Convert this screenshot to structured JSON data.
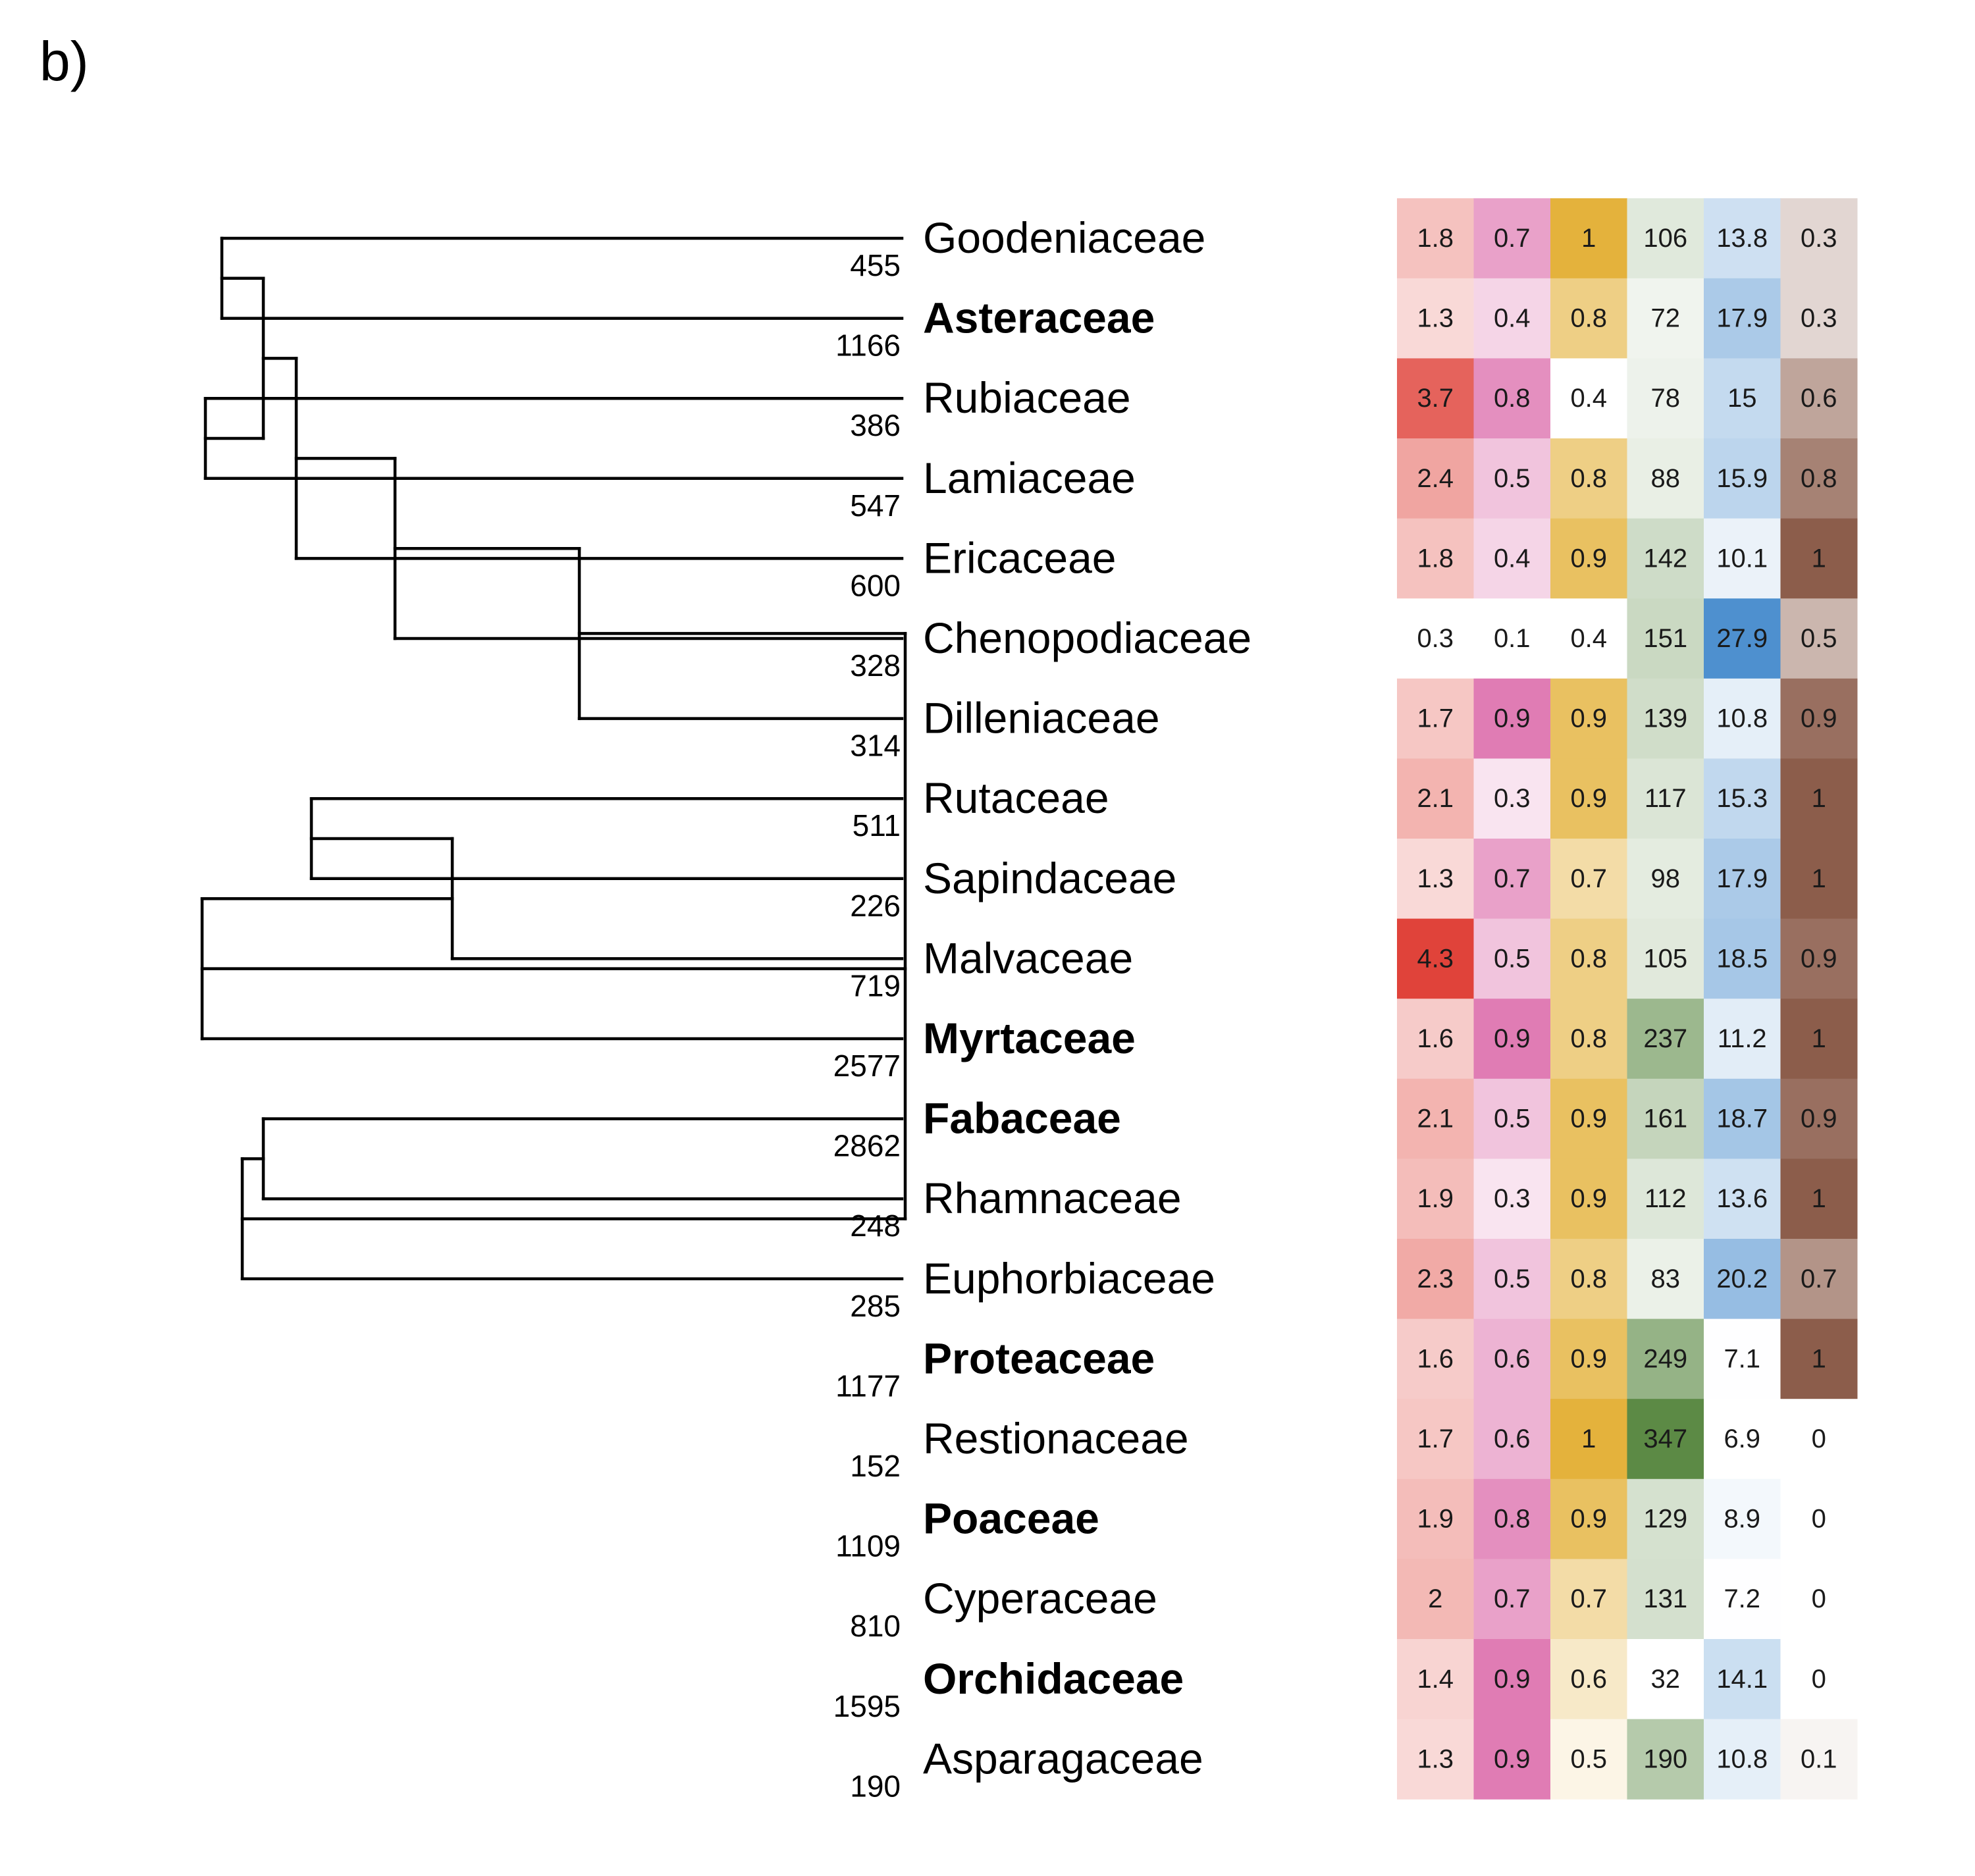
{
  "panel_label": "b)",
  "chart_data": {
    "type": "heatmap",
    "tree": "((((((Goodeniaceae,Asteraceae),(Rubiaceae,Lamiaceae)),Ericaceae),Chenopodiaceae),Dilleniaceae),(((Rutaceae,Sapindaceae),Malvaceae),Myrtaceae),((Fabaceae,Rhamnaceae),Euphorbiaceae)),Proteaceae),(((Restionaceae,Poaceae),Cyperaceae),(Orchidaceae,Asparagaceae)))",
    "rows": [
      {
        "family": "Goodeniaceae",
        "count": "455",
        "bold": false,
        "values": [
          "1.8",
          "0.7",
          "1",
          "106",
          "13.8",
          "0.3"
        ]
      },
      {
        "family": "Asteraceae",
        "count": "1166",
        "bold": true,
        "values": [
          "1.3",
          "0.4",
          "0.8",
          "72",
          "17.9",
          "0.3"
        ]
      },
      {
        "family": "Rubiaceae",
        "count": "386",
        "bold": false,
        "values": [
          "3.7",
          "0.8",
          "0.4",
          "78",
          "15",
          "0.6"
        ]
      },
      {
        "family": "Lamiaceae",
        "count": "547",
        "bold": false,
        "values": [
          "2.4",
          "0.5",
          "0.8",
          "88",
          "15.9",
          "0.8"
        ]
      },
      {
        "family": "Ericaceae",
        "count": "600",
        "bold": false,
        "values": [
          "1.8",
          "0.4",
          "0.9",
          "142",
          "10.1",
          "1"
        ]
      },
      {
        "family": "Chenopodiaceae",
        "count": "328",
        "bold": false,
        "values": [
          "0.3",
          "0.1",
          "0.4",
          "151",
          "27.9",
          "0.5"
        ]
      },
      {
        "family": "Dilleniaceae",
        "count": "314",
        "bold": false,
        "values": [
          "1.7",
          "0.9",
          "0.9",
          "139",
          "10.8",
          "0.9"
        ]
      },
      {
        "family": "Rutaceae",
        "count": "511",
        "bold": false,
        "values": [
          "2.1",
          "0.3",
          "0.9",
          "117",
          "15.3",
          "1"
        ]
      },
      {
        "family": "Sapindaceae",
        "count": "226",
        "bold": false,
        "values": [
          "1.3",
          "0.7",
          "0.7",
          "98",
          "17.9",
          "1"
        ]
      },
      {
        "family": "Malvaceae",
        "count": "719",
        "bold": false,
        "values": [
          "4.3",
          "0.5",
          "0.8",
          "105",
          "18.5",
          "0.9"
        ]
      },
      {
        "family": "Myrtaceae",
        "count": "2577",
        "bold": true,
        "values": [
          "1.6",
          "0.9",
          "0.8",
          "237",
          "11.2",
          "1"
        ]
      },
      {
        "family": "Fabaceae",
        "count": "2862",
        "bold": true,
        "values": [
          "2.1",
          "0.5",
          "0.9",
          "161",
          "18.7",
          "0.9"
        ]
      },
      {
        "family": "Rhamnaceae",
        "count": "248",
        "bold": false,
        "values": [
          "1.9",
          "0.3",
          "0.9",
          "112",
          "13.6",
          "1"
        ]
      },
      {
        "family": "Euphorbiaceae",
        "count": "285",
        "bold": false,
        "values": [
          "2.3",
          "0.5",
          "0.8",
          "83",
          "20.2",
          "0.7"
        ]
      },
      {
        "family": "Proteaceae",
        "count": "1177",
        "bold": true,
        "values": [
          "1.6",
          "0.6",
          "0.9",
          "249",
          "7.1",
          "1"
        ]
      },
      {
        "family": "Restionaceae",
        "count": "152",
        "bold": false,
        "values": [
          "1.7",
          "0.6",
          "1",
          "347",
          "6.9",
          "0"
        ]
      },
      {
        "family": "Poaceae",
        "count": "1109",
        "bold": true,
        "values": [
          "1.9",
          "0.8",
          "0.9",
          "129",
          "8.9",
          "0"
        ]
      },
      {
        "family": "Cyperaceae",
        "count": "810",
        "bold": false,
        "values": [
          "2",
          "0.7",
          "0.7",
          "131",
          "7.2",
          "0"
        ]
      },
      {
        "family": "Orchidaceae",
        "count": "1595",
        "bold": true,
        "values": [
          "1.4",
          "0.9",
          "0.6",
          "32",
          "14.1",
          "0"
        ]
      },
      {
        "family": "Asparagaceae",
        "count": "190",
        "bold": false,
        "values": [
          "1.3",
          "0.9",
          "0.5",
          "190",
          "10.8",
          "0.1"
        ]
      }
    ],
    "column_colors": [
      {
        "low": "#ffffff",
        "high": "#e0433a",
        "min": 0.3,
        "max": 4.3
      },
      {
        "low": "#ffffff",
        "high": "#e07cb4",
        "min": 0.1,
        "max": 0.9
      },
      {
        "low": "#ffffff",
        "high": "#e4b23c",
        "min": 0.4,
        "max": 1
      },
      {
        "low": "#ffffff",
        "high": "#5c8a45",
        "min": 32,
        "max": 347
      },
      {
        "low": "#ffffff",
        "high": "#4e90cf",
        "min": 6.9,
        "max": 27.9
      },
      {
        "low": "#ffffff",
        "high": "#8c5d4b",
        "min": 0,
        "max": 1
      }
    ]
  }
}
